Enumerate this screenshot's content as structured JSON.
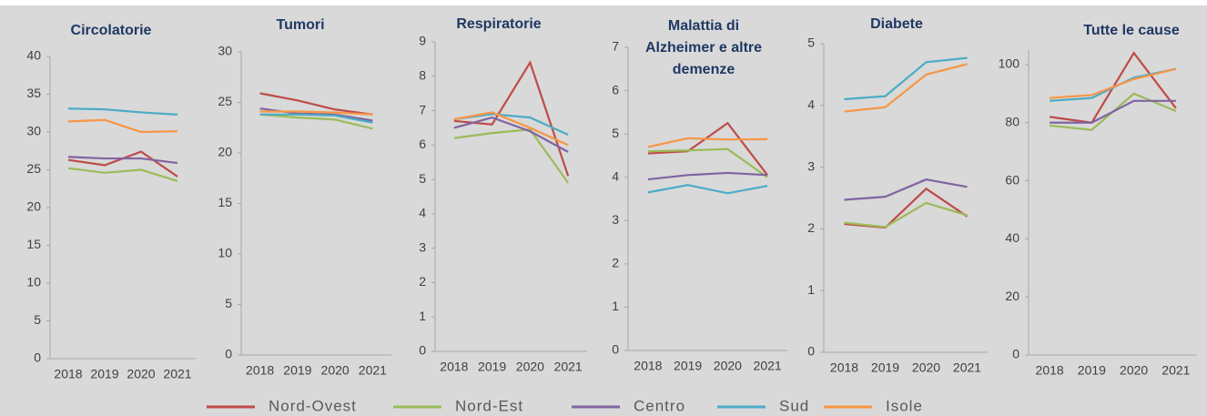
{
  "chart_data": [
    {
      "type": "line",
      "title": "Circolatorie",
      "categories": [
        "2018",
        "2019",
        "2020",
        "2021"
      ],
      "ylim": [
        0,
        40
      ],
      "yticks": [
        0,
        5,
        10,
        15,
        20,
        25,
        30,
        35,
        40
      ],
      "series": [
        {
          "values": [
            26.3,
            25.6,
            27.4,
            24.1
          ]
        },
        {
          "values": [
            25.2,
            24.6,
            25.0,
            23.5
          ]
        },
        {
          "values": [
            26.7,
            26.5,
            26.5,
            25.9
          ]
        },
        {
          "values": [
            33.1,
            33.0,
            32.6,
            32.3
          ]
        },
        {
          "values": [
            31.4,
            31.6,
            30.0,
            30.1
          ]
        }
      ]
    },
    {
      "type": "line",
      "title": "Tumori",
      "categories": [
        "2018",
        "2019",
        "2020",
        "2021"
      ],
      "ylim": [
        0,
        30
      ],
      "yticks": [
        0,
        5,
        10,
        15,
        20,
        25,
        30
      ],
      "series": [
        {
          "values": [
            25.9,
            25.2,
            24.3,
            23.8
          ]
        },
        {
          "values": [
            23.8,
            23.5,
            23.3,
            22.4
          ]
        },
        {
          "values": [
            24.4,
            23.9,
            23.8,
            23.2
          ]
        },
        {
          "values": [
            23.8,
            23.8,
            23.7,
            23.0
          ]
        },
        {
          "values": [
            24.1,
            24.1,
            24.0,
            23.8
          ]
        }
      ]
    },
    {
      "type": "line",
      "title": "Respiratorie",
      "categories": [
        "2018",
        "2019",
        "2020",
        "2021"
      ],
      "ylim": [
        0,
        9
      ],
      "yticks": [
        0,
        1,
        2,
        3,
        4,
        5,
        6,
        7,
        8,
        9
      ],
      "series": [
        {
          "values": [
            6.7,
            6.6,
            8.4,
            5.1
          ]
        },
        {
          "values": [
            6.2,
            6.35,
            6.45,
            4.9
          ]
        },
        {
          "values": [
            6.5,
            6.8,
            6.4,
            5.8
          ]
        },
        {
          "values": [
            6.75,
            6.9,
            6.8,
            6.3
          ]
        },
        {
          "values": [
            6.75,
            6.95,
            6.5,
            6.0
          ]
        }
      ]
    },
    {
      "type": "line",
      "title": "Malattia di Alzheimer e altre demenze",
      "categories": [
        "2018",
        "2019",
        "2020",
        "2021"
      ],
      "ylim": [
        0,
        7
      ],
      "yticks": [
        0,
        1,
        2,
        3,
        4,
        5,
        6,
        7
      ],
      "series": [
        {
          "values": [
            4.55,
            4.6,
            5.25,
            4.05
          ]
        },
        {
          "values": [
            4.6,
            4.62,
            4.65,
            4.0
          ]
        },
        {
          "values": [
            3.95,
            4.05,
            4.1,
            4.05
          ]
        },
        {
          "values": [
            3.65,
            3.82,
            3.63,
            3.8
          ]
        },
        {
          "values": [
            4.7,
            4.9,
            4.87,
            4.88
          ]
        }
      ]
    },
    {
      "type": "line",
      "title": "Diabete",
      "categories": [
        "2018",
        "2019",
        "2020",
        "2021"
      ],
      "ylim": [
        0,
        5
      ],
      "yticks": [
        0,
        1,
        2,
        3,
        4,
        5
      ],
      "series": [
        {
          "values": [
            2.08,
            2.02,
            2.65,
            2.2
          ]
        },
        {
          "values": [
            2.1,
            2.03,
            2.42,
            2.22
          ]
        },
        {
          "values": [
            2.47,
            2.52,
            2.8,
            2.68
          ]
        },
        {
          "values": [
            4.1,
            4.15,
            4.7,
            4.77
          ]
        },
        {
          "values": [
            3.9,
            3.97,
            4.5,
            4.67
          ]
        }
      ]
    },
    {
      "type": "line",
      "title": "Tutte le cause",
      "categories": [
        "2018",
        "2019",
        "2020",
        "2021"
      ],
      "ylim": [
        0,
        105
      ],
      "yticks": [
        0,
        20,
        40,
        60,
        80,
        100
      ],
      "series": [
        {
          "values": [
            82,
            80,
            104,
            85
          ]
        },
        {
          "values": [
            79,
            77.5,
            90,
            84
          ]
        },
        {
          "values": [
            80,
            80,
            87.5,
            87.5
          ]
        },
        {
          "values": [
            87.5,
            88.5,
            95.5,
            98.5
          ]
        },
        {
          "values": [
            88.5,
            89.5,
            95,
            98.5
          ]
        }
      ]
    }
  ],
  "legend": [
    {
      "name": "Nord-Ovest",
      "color": "#be4b48"
    },
    {
      "name": "Nord-Est",
      "color": "#9bbb59"
    },
    {
      "name": "Centro",
      "color": "#8064a2"
    },
    {
      "name": "Sud",
      "color": "#4bacc6"
    },
    {
      "name": "Isole",
      "color": "#f79646"
    }
  ]
}
